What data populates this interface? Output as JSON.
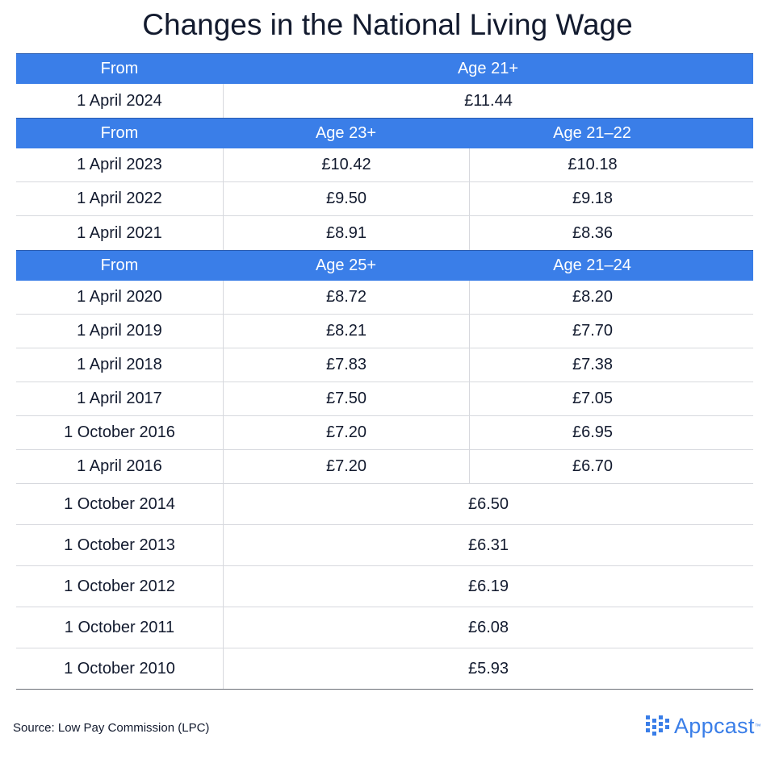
{
  "title": "Changes in the National Living Wage",
  "section1": {
    "header": {
      "from": "From",
      "age": "Age 21+"
    },
    "rows": [
      {
        "date": "1 April 2024",
        "value": "£11.44"
      }
    ]
  },
  "section2": {
    "header": {
      "from": "From",
      "age_a": "Age 23+",
      "age_b": "Age 21–22"
    },
    "rows": [
      {
        "date": "1 April 2023",
        "a": "£10.42",
        "b": "£10.18"
      },
      {
        "date": "1 April 2022",
        "a": "£9.50",
        "b": "£9.18"
      },
      {
        "date": "1 April 2021",
        "a": "£8.91",
        "b": "£8.36"
      }
    ]
  },
  "section3": {
    "header": {
      "from": "From",
      "age_a": "Age 25+",
      "age_b": "Age 21–24"
    },
    "rows": [
      {
        "date": "1 April 2020",
        "a": "£8.72",
        "b": "£8.20"
      },
      {
        "date": "1 April 2019",
        "a": "£8.21",
        "b": "£7.70"
      },
      {
        "date": "1 April 2018",
        "a": "£7.83",
        "b": "£7.38"
      },
      {
        "date": "1 April 2017",
        "a": "£7.50",
        "b": "£7.05"
      },
      {
        "date": "1 October 2016",
        "a": "£7.20",
        "b": "£6.95"
      },
      {
        "date": "1 April 2016",
        "a": "£7.20",
        "b": "£6.70"
      }
    ]
  },
  "section4": {
    "rows": [
      {
        "date": "1 October 2014",
        "value": "£6.50"
      },
      {
        "date": "1 October 2013",
        "value": "£6.31"
      },
      {
        "date": "1 October 2012",
        "value": "£6.19"
      },
      {
        "date": "1 October 2011",
        "value": "£6.08"
      },
      {
        "date": "1 October 2010",
        "value": "£5.93"
      }
    ]
  },
  "footer": {
    "source": "Source: Low Pay Commission (LPC)",
    "logo_text": "Appcast",
    "logo_tm": "™",
    "logo_icon": "appcast-dots-icon",
    "accent_color": "#3a7ee8"
  }
}
